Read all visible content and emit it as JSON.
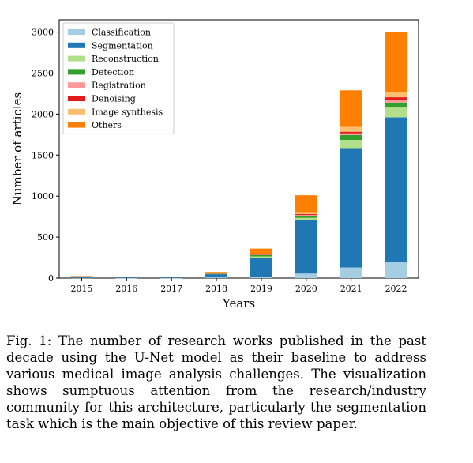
{
  "chart_data": {
    "type": "bar",
    "stacked": true,
    "title": "",
    "xlabel": "Years",
    "ylabel": "Number of articles",
    "ylim": [
      0,
      3150
    ],
    "yticks": [
      0,
      500,
      1000,
      1500,
      2000,
      2500,
      3000
    ],
    "categories": [
      "2015",
      "2016",
      "2017",
      "2018",
      "2019",
      "2020",
      "2021",
      "2022"
    ],
    "legend_position": "top-left",
    "series": [
      {
        "name": "Classification",
        "color": "#a6cee3",
        "values": [
          3,
          1,
          1,
          8,
          10,
          55,
          130,
          200
        ]
      },
      {
        "name": "Segmentation",
        "color": "#1f78b4",
        "values": [
          20,
          8,
          8,
          40,
          240,
          650,
          1455,
          1760
        ]
      },
      {
        "name": "Reconstruction",
        "color": "#b2df8a",
        "values": [
          0,
          0,
          0,
          4,
          15,
          30,
          100,
          120
        ]
      },
      {
        "name": "Detection",
        "color": "#33a02c",
        "values": [
          0,
          0,
          0,
          3,
          15,
          20,
          60,
          60
        ]
      },
      {
        "name": "Registration",
        "color": "#fb9a99",
        "values": [
          0,
          0,
          0,
          2,
          5,
          15,
          20,
          30
        ]
      },
      {
        "name": "Denoising",
        "color": "#e31a1c",
        "values": [
          0,
          0,
          0,
          1,
          3,
          10,
          20,
          35
        ]
      },
      {
        "name": "Image synthesis",
        "color": "#fdbf6f",
        "values": [
          0,
          0,
          0,
          2,
          10,
          25,
          60,
          60
        ]
      },
      {
        "name": "Others",
        "color": "#ff7f00",
        "values": [
          2,
          5,
          5,
          15,
          62,
          205,
          445,
          735
        ]
      }
    ]
  },
  "caption": "Fig. 1: The number of research works published in the past decade using the U-Net model as their baseline to address various medical image analysis challenges. The visualization shows sumptuous attention from the research/industry community for this architecture, particularly the segmentation task which is the main objective of this review paper."
}
